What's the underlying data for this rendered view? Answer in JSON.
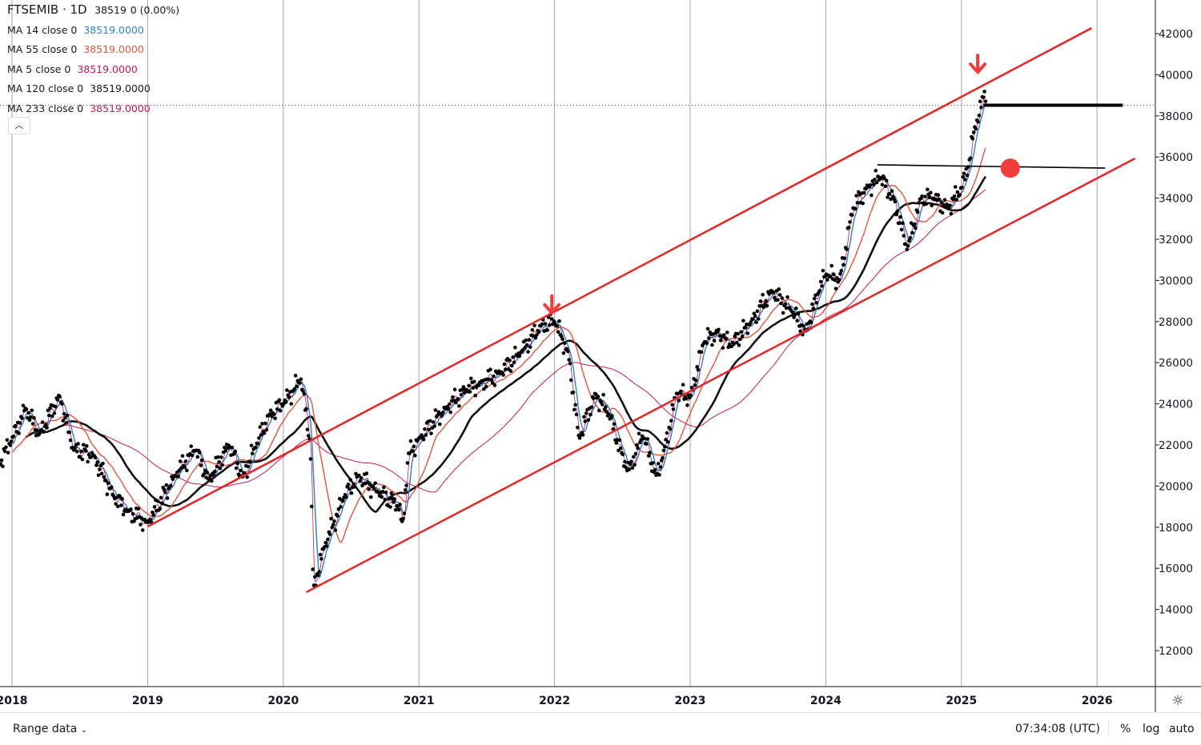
{
  "header": {
    "symbol": "FTSEMIB",
    "interval": "1D",
    "price": "38519",
    "change": "0 (0.00%)"
  },
  "legend": [
    {
      "label": "MA 14 close 0",
      "value": "38519.0000",
      "color": "#2f7fc1"
    },
    {
      "label": "MA 55 close 0",
      "value": "38519.0000",
      "color": "#e0533f"
    },
    {
      "label": "MA 5 close 0",
      "value": "38519.0000",
      "color": "#c2185b"
    },
    {
      "label": "MA 120 close 0",
      "value": "38519.0000",
      "color": "#131722"
    },
    {
      "label": "MA 233 close 0",
      "value": "38519.0000",
      "color": "#c2185b"
    }
  ],
  "collapse_icon": "chevron-up-icon",
  "bottom": {
    "range": "Range data",
    "time": "07:34:08 (UTC)",
    "percent": "%",
    "log": "log",
    "auto": "auto"
  },
  "chart_data": {
    "type": "line",
    "title": "FTSEMIB 1D",
    "ylim": [
      11000,
      43500
    ],
    "xlim": [
      2017.99,
      2026.45
    ],
    "yticks": [
      12000,
      14000,
      16000,
      18000,
      20000,
      22000,
      24000,
      26000,
      28000,
      30000,
      32000,
      34000,
      36000,
      38000,
      40000,
      42000
    ],
    "xticks": [
      {
        "v": 2018,
        "label": "2018"
      },
      {
        "v": 2019,
        "label": "2019"
      },
      {
        "v": 2020,
        "label": "2020"
      },
      {
        "v": 2021,
        "label": "2021"
      },
      {
        "v": 2022,
        "label": "2022"
      },
      {
        "v": 2023,
        "label": "2023"
      },
      {
        "v": 2024,
        "label": "2024"
      },
      {
        "v": 2025,
        "label": "2025"
      },
      {
        "v": 2026,
        "label": "2026"
      }
    ],
    "price": [
      [
        2017.9,
        21000
      ],
      [
        2018.0,
        22300
      ],
      [
        2018.1,
        23800
      ],
      [
        2018.2,
        22500
      ],
      [
        2018.35,
        24400
      ],
      [
        2018.45,
        21800
      ],
      [
        2018.6,
        21500
      ],
      [
        2018.75,
        19500
      ],
      [
        2018.85,
        18800
      ],
      [
        2019.0,
        18200
      ],
      [
        2019.2,
        20500
      ],
      [
        2019.35,
        21800
      ],
      [
        2019.45,
        20300
      ],
      [
        2019.6,
        22000
      ],
      [
        2019.7,
        20400
      ],
      [
        2019.8,
        22000
      ],
      [
        2019.9,
        23500
      ],
      [
        2020.0,
        24000
      ],
      [
        2020.13,
        25200
      ],
      [
        2020.2,
        22000
      ],
      [
        2020.22,
        15000
      ],
      [
        2020.3,
        17000
      ],
      [
        2020.45,
        19500
      ],
      [
        2020.55,
        20500
      ],
      [
        2020.7,
        19700
      ],
      [
        2020.85,
        19000
      ],
      [
        2020.88,
        18000
      ],
      [
        2020.92,
        21500
      ],
      [
        2021.0,
        22300
      ],
      [
        2021.2,
        23800
      ],
      [
        2021.35,
        24700
      ],
      [
        2021.45,
        25000
      ],
      [
        2021.6,
        25500
      ],
      [
        2021.75,
        26500
      ],
      [
        2021.9,
        27800
      ],
      [
        2022.0,
        28000
      ],
      [
        2022.1,
        26500
      ],
      [
        2022.18,
        22300
      ],
      [
        2022.3,
        24500
      ],
      [
        2022.4,
        23500
      ],
      [
        2022.5,
        21500
      ],
      [
        2022.55,
        20800
      ],
      [
        2022.65,
        22500
      ],
      [
        2022.75,
        20500
      ],
      [
        2022.8,
        21500
      ],
      [
        2022.9,
        24500
      ],
      [
        2023.0,
        24300
      ],
      [
        2023.1,
        27000
      ],
      [
        2023.2,
        27500
      ],
      [
        2023.3,
        26800
      ],
      [
        2023.45,
        28000
      ],
      [
        2023.6,
        29500
      ],
      [
        2023.75,
        28500
      ],
      [
        2023.85,
        27500
      ],
      [
        2023.95,
        29500
      ],
      [
        2024.0,
        30300
      ],
      [
        2024.1,
        30000
      ],
      [
        2024.2,
        33500
      ],
      [
        2024.3,
        34500
      ],
      [
        2024.4,
        35000
      ],
      [
        2024.5,
        34000
      ],
      [
        2024.6,
        31500
      ],
      [
        2024.7,
        34000
      ],
      [
        2024.8,
        34000
      ],
      [
        2024.9,
        33500
      ],
      [
        2025.0,
        34500
      ],
      [
        2025.05,
        35500
      ],
      [
        2025.1,
        37500
      ],
      [
        2025.15,
        38500
      ],
      [
        2025.17,
        39200
      ],
      [
        2025.18,
        38519
      ]
    ],
    "trendlines": [
      {
        "name": "upper-channel",
        "from": [
          2019.0,
          18030
        ],
        "to": [
          2025.96,
          42270
        ],
        "color": "#e02b2b"
      },
      {
        "name": "lower-channel",
        "from": [
          2020.17,
          14840
        ],
        "to": [
          2026.28,
          35930
        ],
        "color": "#e02b2b"
      },
      {
        "name": "resistance-line",
        "from": [
          2024.38,
          35620
        ],
        "to": [
          2026.06,
          35460
        ],
        "color": "#000000"
      },
      {
        "name": "last-price-level",
        "from": [
          2025.16,
          38519
        ],
        "to": [
          2026.19,
          38519
        ],
        "color": "#000000"
      }
    ],
    "markers": [
      {
        "type": "arrow-down",
        "x": 2021.98,
        "y": 28700
      },
      {
        "type": "arrow-down",
        "x": 2025.12,
        "y": 40400
      },
      {
        "type": "dot",
        "x": 2025.36,
        "y": 35460
      }
    ],
    "last_price": 38519
  }
}
